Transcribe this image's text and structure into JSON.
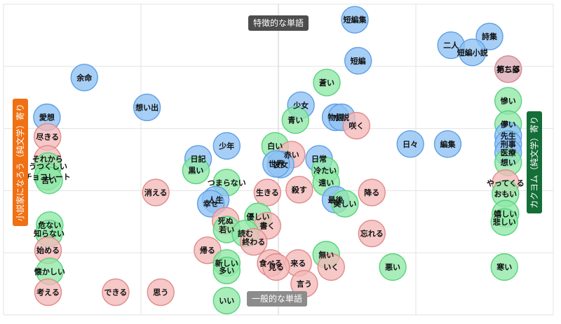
{
  "chart_data": {
    "type": "scatter",
    "title": "",
    "xlabel": "",
    "ylabel": "",
    "xlim": [
      0,
      100
    ],
    "ylim": [
      0,
      100
    ],
    "grid": true,
    "axis_labels": {
      "top": "特徴的な単語",
      "bottom": "一般的な単語",
      "left": "小説家になろう（純文学）寄り",
      "right": "カクヨム（純文学）寄り"
    },
    "colors": {
      "blue_fill": "#8ec1f4",
      "blue_stroke": "#5d9fe6",
      "red_fill": "#f4b8b8",
      "red_stroke": "#e08a8a",
      "green_fill": "#8fe8a6",
      "green_stroke": "#58d27e",
      "top_label_bg": "#4d4d4d",
      "bottom_label_bg": "#8c8c8c",
      "left_label_bg": "#f07014",
      "right_label_bg": "#146e37",
      "grid": "#e3e3e3"
    },
    "points": [
      {
        "label": "短編集",
        "x": 63.9,
        "y": 95.0,
        "group": "blue"
      },
      {
        "label": "詩集",
        "x": 88.4,
        "y": 89.6,
        "group": "blue"
      },
      {
        "label": "二人",
        "x": 81.4,
        "y": 86.8,
        "group": "blue"
      },
      {
        "label": "短編小説",
        "x": 85.3,
        "y": 84.5,
        "group": "blue"
      },
      {
        "label": "短編",
        "x": 64.5,
        "y": 81.8,
        "group": "blue"
      },
      {
        "label": "第二部",
        "x": 91.8,
        "y": 79.1,
        "group": "blue"
      },
      {
        "label": "朽ちる",
        "x": 91.8,
        "y": 79.1,
        "group": "red"
      },
      {
        "label": "余命",
        "x": 14.7,
        "y": 76.4,
        "group": "blue"
      },
      {
        "label": "蒼い",
        "x": 58.8,
        "y": 74.8,
        "group": "green"
      },
      {
        "label": "想い出",
        "x": 26.1,
        "y": 66.8,
        "group": "blue"
      },
      {
        "label": "少女",
        "x": 54.1,
        "y": 67.5,
        "group": "blue"
      },
      {
        "label": "慘い",
        "x": 91.8,
        "y": 68.9,
        "group": "green"
      },
      {
        "label": "愛想",
        "x": 7.9,
        "y": 63.6,
        "group": "blue"
      },
      {
        "label": "物語",
        "x": 60.4,
        "y": 63.6,
        "group": "blue"
      },
      {
        "label": "小説",
        "x": 61.5,
        "y": 63.6,
        "group": "blue"
      },
      {
        "label": "青い",
        "x": 53.1,
        "y": 62.7,
        "group": "green"
      },
      {
        "label": "咲く",
        "x": 64.2,
        "y": 60.9,
        "group": "red"
      },
      {
        "label": "儚い",
        "x": 91.8,
        "y": 61.4,
        "group": "green"
      },
      {
        "label": "尽きる",
        "x": 8.0,
        "y": 57.3,
        "group": "red"
      },
      {
        "label": "日々",
        "x": 74.0,
        "y": 55.0,
        "group": "blue"
      },
      {
        "label": "編集",
        "x": 80.8,
        "y": 55.0,
        "group": "blue"
      },
      {
        "label": "先生",
        "x": 91.8,
        "y": 57.7,
        "group": "blue"
      },
      {
        "label": "刑事",
        "x": 91.8,
        "y": 55.0,
        "group": "blue"
      },
      {
        "label": "医療",
        "x": 91.8,
        "y": 52.2,
        "group": "blue"
      },
      {
        "label": "白い",
        "x": 49.4,
        "y": 54.4,
        "group": "green"
      },
      {
        "label": "少年",
        "x": 40.6,
        "y": 54.4,
        "group": "blue"
      },
      {
        "label": "それから",
        "x": 8.0,
        "y": 50.2,
        "group": "red"
      },
      {
        "label": "日記",
        "x": 35.4,
        "y": 50.2,
        "group": "blue"
      },
      {
        "label": "赤い",
        "x": 52.4,
        "y": 51.6,
        "group": "red"
      },
      {
        "label": "日常",
        "x": 57.4,
        "y": 50.2,
        "group": "blue"
      },
      {
        "label": "想い",
        "x": 91.8,
        "y": 49.1,
        "group": "green"
      },
      {
        "label": "彼女",
        "x": 50.4,
        "y": 48.4,
        "group": "blue"
      },
      {
        "label": "世界",
        "x": 49.6,
        "y": 48.6,
        "group": "blue"
      },
      {
        "label": "うつくしい",
        "x": 8.1,
        "y": 47.9,
        "group": "green"
      },
      {
        "label": "黒い",
        "x": 35.0,
        "y": 46.5,
        "group": "green"
      },
      {
        "label": "冷たい",
        "x": 58.5,
        "y": 46.5,
        "group": "green"
      },
      {
        "label": "チョコレート",
        "x": 8.0,
        "y": 44.5,
        "group": "green"
      },
      {
        "label": "苦い",
        "x": 8.3,
        "y": 43.3,
        "group": "green"
      },
      {
        "label": "つまらない",
        "x": 40.6,
        "y": 42.6,
        "group": "green"
      },
      {
        "label": "遠い",
        "x": 58.7,
        "y": 42.6,
        "group": "green"
      },
      {
        "label": "やってくる",
        "x": 91.3,
        "y": 42.4,
        "group": "red"
      },
      {
        "label": "消える",
        "x": 27.7,
        "y": 39.4,
        "group": "red"
      },
      {
        "label": "生きる",
        "x": 48.0,
        "y": 39.4,
        "group": "red"
      },
      {
        "label": "殺す",
        "x": 53.8,
        "y": 40.3,
        "group": "red"
      },
      {
        "label": "降る",
        "x": 67.0,
        "y": 39.4,
        "group": "red"
      },
      {
        "label": "おもい",
        "x": 91.3,
        "y": 39.0,
        "group": "green"
      },
      {
        "label": "人生",
        "x": 38.6,
        "y": 37.1,
        "group": "blue"
      },
      {
        "label": "幸せ",
        "x": 37.7,
        "y": 35.8,
        "group": "blue"
      },
      {
        "label": "最後",
        "x": 60.4,
        "y": 37.1,
        "group": "blue"
      },
      {
        "label": "美しい",
        "x": 62.1,
        "y": 35.8,
        "group": "green"
      },
      {
        "label": "嬉しい",
        "x": 91.3,
        "y": 32.6,
        "group": "green"
      },
      {
        "label": "悲しい",
        "x": 91.1,
        "y": 29.9,
        "group": "green"
      },
      {
        "label": "優しい",
        "x": 46.3,
        "y": 31.7,
        "group": "green"
      },
      {
        "label": "死ぬ",
        "x": 40.4,
        "y": 30.3,
        "group": "red"
      },
      {
        "label": "危ない",
        "x": 8.4,
        "y": 28.9,
        "group": "green"
      },
      {
        "label": "書く",
        "x": 48.0,
        "y": 28.7,
        "group": "red"
      },
      {
        "label": "若い",
        "x": 40.6,
        "y": 27.5,
        "group": "green"
      },
      {
        "label": "知らない",
        "x": 8.3,
        "y": 26.2,
        "group": "green"
      },
      {
        "label": "読む",
        "x": 44.0,
        "y": 26.2,
        "group": "green"
      },
      {
        "label": "忘れる",
        "x": 67.0,
        "y": 26.2,
        "group": "red"
      },
      {
        "label": "終わる",
        "x": 45.5,
        "y": 23.5,
        "group": "red"
      },
      {
        "label": "始める",
        "x": 8.1,
        "y": 20.8,
        "group": "red"
      },
      {
        "label": "帰る",
        "x": 37.1,
        "y": 20.8,
        "group": "red"
      },
      {
        "label": "無い",
        "x": 58.7,
        "y": 19.4,
        "group": "green"
      },
      {
        "label": "新しい",
        "x": 40.6,
        "y": 16.7,
        "group": "green"
      },
      {
        "label": "食べる",
        "x": 48.6,
        "y": 16.7,
        "group": "red"
      },
      {
        "label": "来る",
        "x": 53.6,
        "y": 16.7,
        "group": "red"
      },
      {
        "label": "いく",
        "x": 59.6,
        "y": 15.4,
        "group": "red"
      },
      {
        "label": "悪い",
        "x": 70.8,
        "y": 15.4,
        "group": "green"
      },
      {
        "label": "寒い",
        "x": 91.1,
        "y": 15.4,
        "group": "green"
      },
      {
        "label": "見る",
        "x": 49.6,
        "y": 15.4,
        "group": "red"
      },
      {
        "label": "多い",
        "x": 40.6,
        "y": 14.3,
        "group": "green"
      },
      {
        "label": "懐かしい",
        "x": 8.4,
        "y": 14.0,
        "group": "green"
      },
      {
        "label": "言う",
        "x": 54.7,
        "y": 10.0,
        "group": "red"
      },
      {
        "label": "考える",
        "x": 8.1,
        "y": 7.3,
        "group": "red"
      },
      {
        "label": "できる",
        "x": 20.4,
        "y": 7.3,
        "group": "red"
      },
      {
        "label": "思う",
        "x": 28.6,
        "y": 7.3,
        "group": "red"
      },
      {
        "label": "いい",
        "x": 40.6,
        "y": 4.6,
        "group": "green"
      }
    ]
  }
}
